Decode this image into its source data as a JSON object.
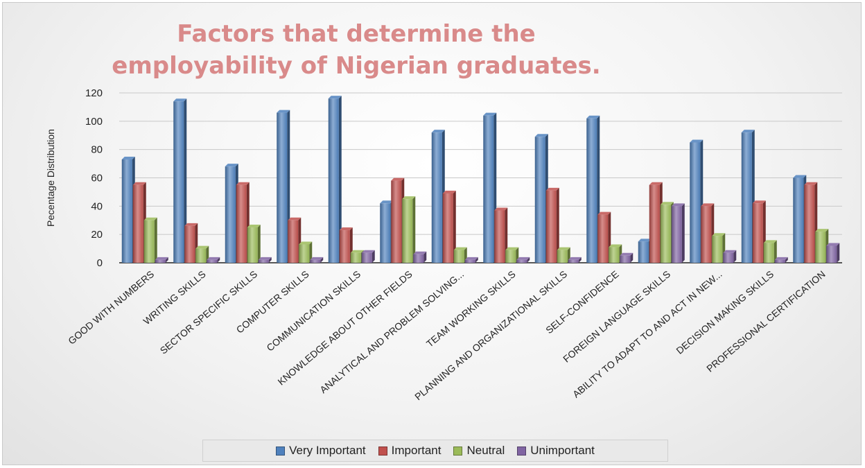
{
  "chart_data": {
    "type": "bar",
    "title": "Factors that determine the employability of Nigerian graduates.",
    "xlabel": "",
    "ylabel": "Pecentage Distribution",
    "ylim": [
      0,
      120
    ],
    "yticks": [
      "0",
      "20",
      "40",
      "60",
      "80",
      "100",
      "120"
    ],
    "grid": true,
    "legend_position": "bottom",
    "categories": [
      "GOOD WITH NUMBERS",
      "WRITING SKILLS",
      "SECTOR SPECIFIC SKILLS",
      "COMPUTER SKILLS",
      "COMMUNICATION SKILLS",
      "KNOWLEDGE ABOUT OTHER FIELDS",
      "ANALYTICAL AND PROBLEM SOLVING...",
      "TEAM WORKING SKILLS",
      "PLANNING AND ORGANIZATIONAL SKILLS",
      "SELF-CONFIDENCE",
      "FOREIGN LANGUAGE SKILLS",
      "ABILITY TO ADAPT TO AND ACT IN NEW...",
      "DECISION MAKING SKILLS",
      "PROFESSIONAL CERTIFICATION"
    ],
    "series": [
      {
        "name": "Very Important",
        "color": "#4f81bd",
        "values": [
          73,
          114,
          68,
          106,
          116,
          42,
          92,
          104,
          89,
          102,
          15,
          85,
          92,
          60
        ]
      },
      {
        "name": "Important",
        "color": "#c0504d",
        "values": [
          55,
          26,
          55,
          30,
          23,
          58,
          49,
          37,
          51,
          34,
          55,
          40,
          42,
          55
        ]
      },
      {
        "name": "Neutral",
        "color": "#9bbb59",
        "values": [
          30,
          10,
          25,
          13,
          7,
          45,
          9,
          9,
          9,
          11,
          41,
          19,
          14,
          22
        ]
      },
      {
        "name": "Unimportant",
        "color": "#8064a2",
        "values": [
          2,
          2,
          2,
          2,
          7,
          6,
          2,
          2,
          2,
          5,
          40,
          7,
          2,
          12
        ]
      }
    ]
  }
}
